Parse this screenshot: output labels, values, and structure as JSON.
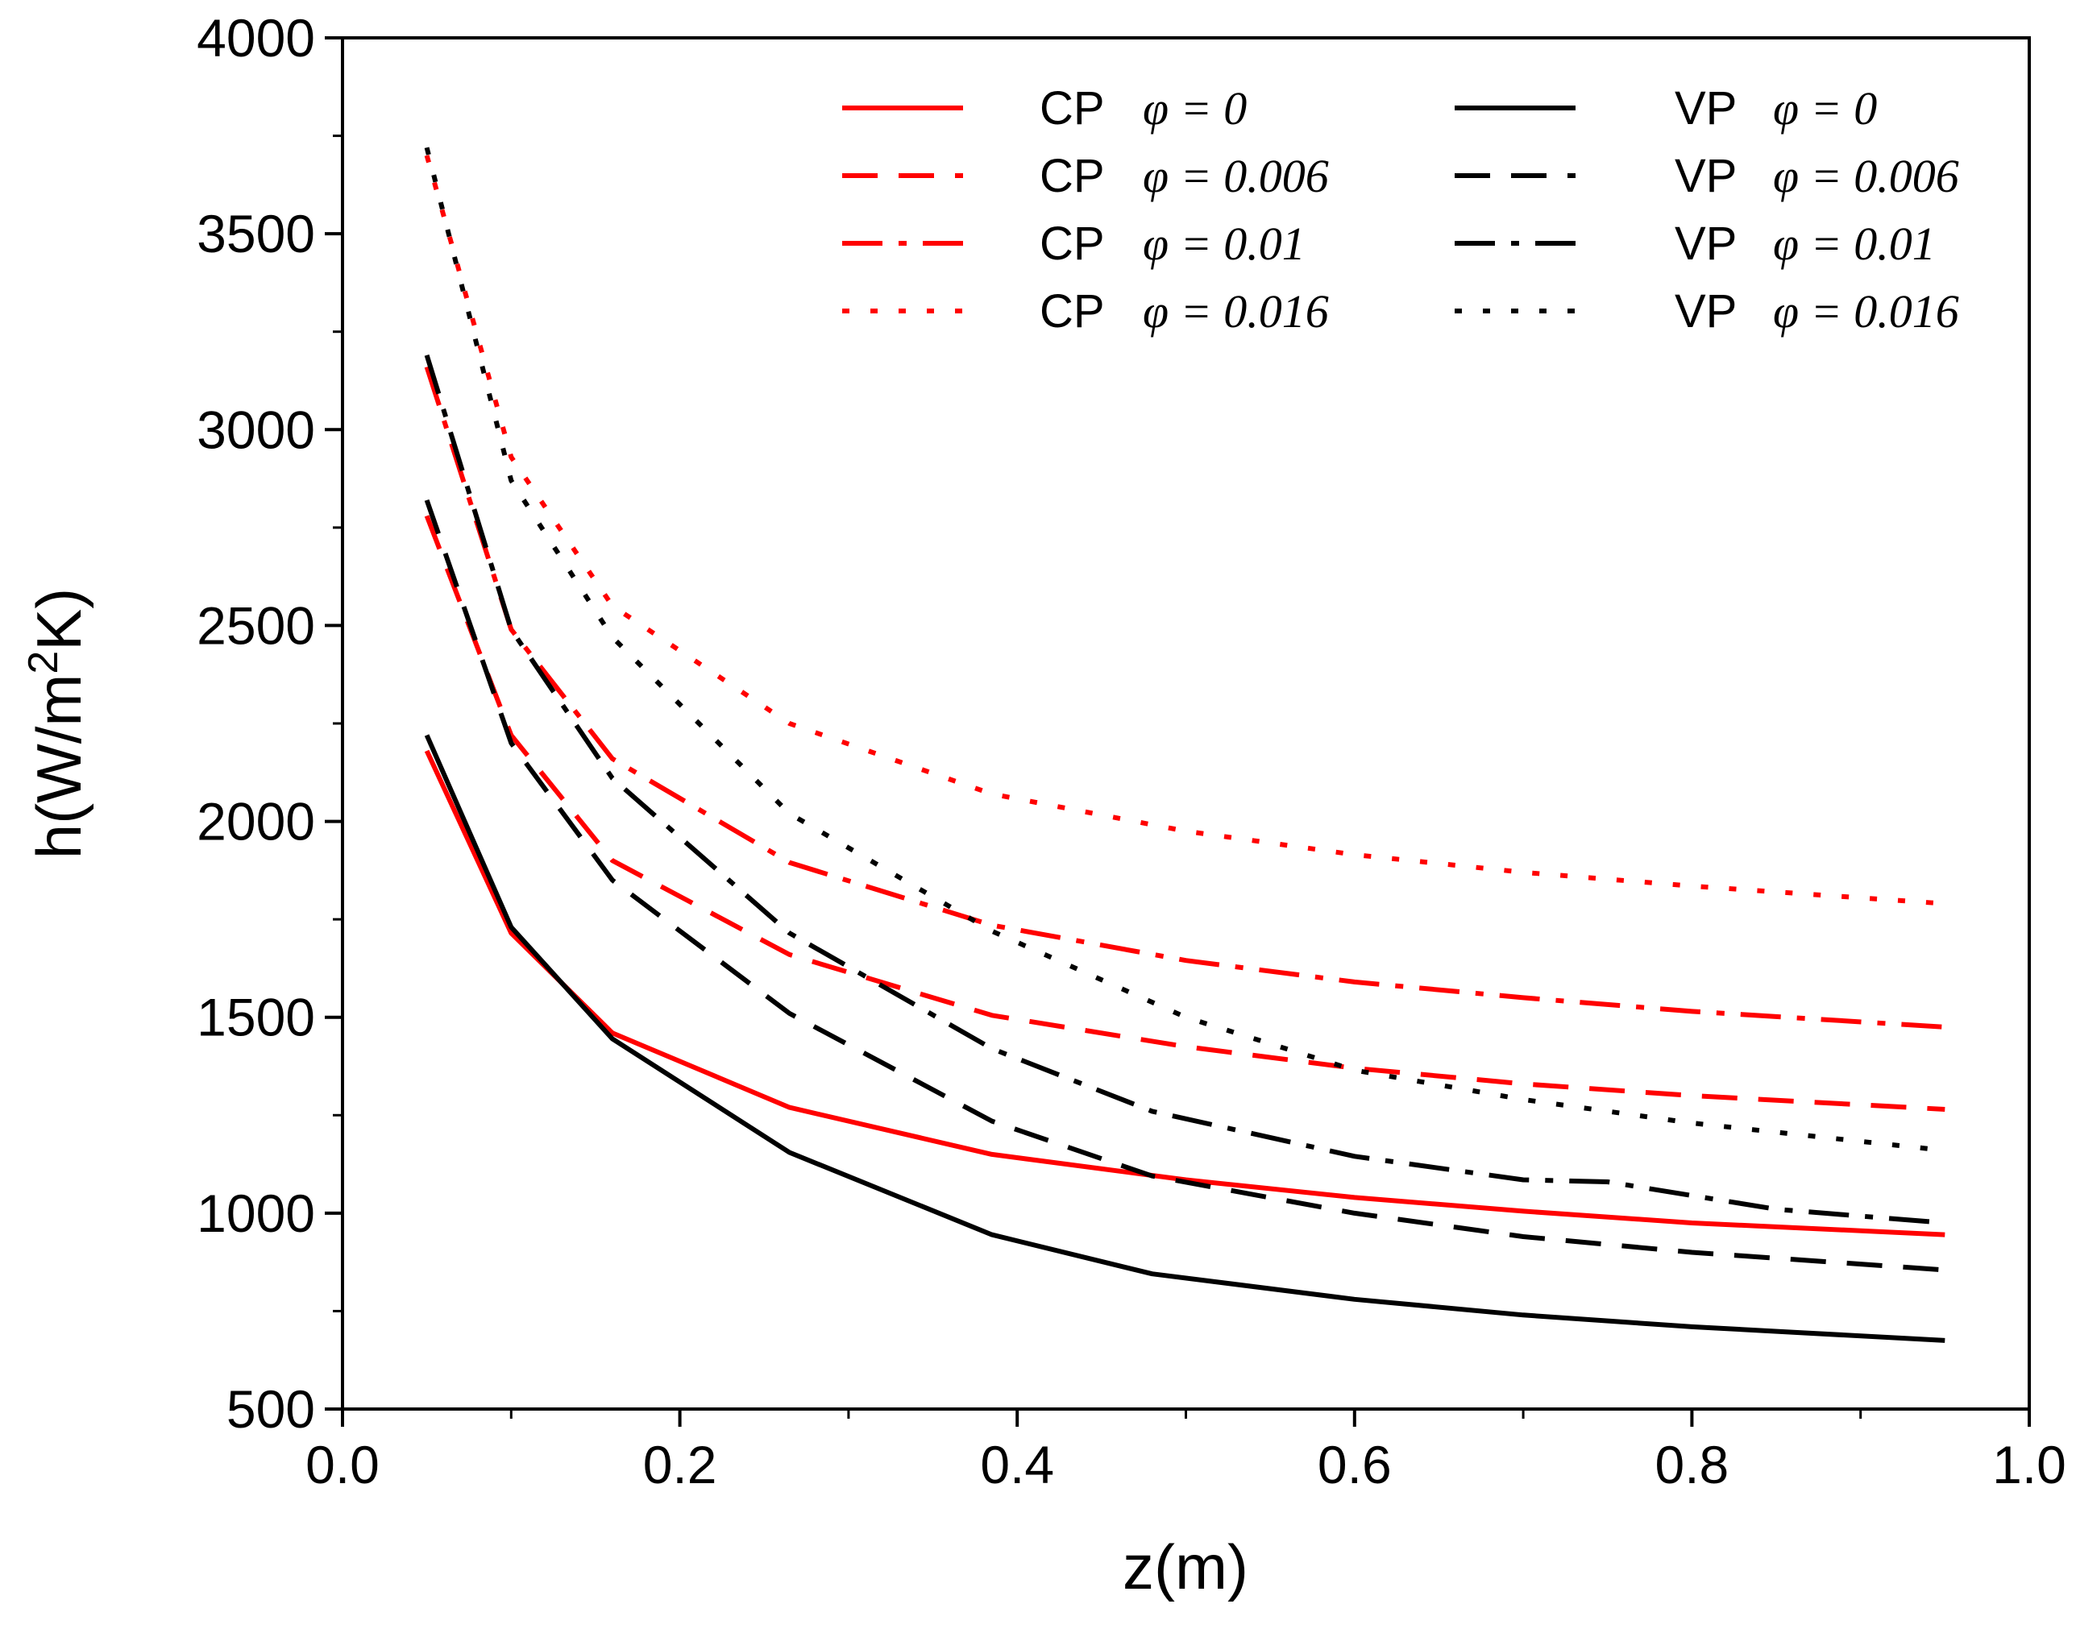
{
  "chart_data": {
    "type": "line",
    "title": "",
    "xlabel": "z(m)",
    "ylabel_parts": {
      "main": "h(W/m",
      "sup": "2",
      "tail": "K)"
    },
    "xlim": [
      0.0,
      1.0
    ],
    "ylim": [
      500,
      4000
    ],
    "x_ticks": [
      "0.0",
      "0.2",
      "0.4",
      "0.6",
      "0.8",
      "1.0"
    ],
    "y_ticks": [
      "500",
      "1000",
      "1500",
      "2000",
      "2500",
      "3000",
      "3500",
      "4000"
    ],
    "legend_position": "top-right",
    "series": [
      {
        "name": "CP φ=0",
        "prefix": "CP",
        "phi_label": "φ = 0",
        "color": "#ff0000",
        "style": "solid",
        "x": [
          0.05,
          0.1,
          0.16,
          0.265,
          0.385,
          0.5,
          0.6,
          0.7,
          0.8,
          0.95
        ],
        "y": [
          2180,
          1715,
          1460,
          1270,
          1150,
          1085,
          1040,
          1005,
          975,
          945
        ]
      },
      {
        "name": "CP φ=0.006",
        "prefix": "CP",
        "phi_label": "φ = 0.006",
        "color": "#ff0000",
        "style": "dash",
        "x": [
          0.05,
          0.1,
          0.16,
          0.265,
          0.385,
          0.5,
          0.6,
          0.7,
          0.8,
          0.95
        ],
        "y": [
          2780,
          2220,
          1900,
          1660,
          1505,
          1425,
          1370,
          1330,
          1300,
          1265
        ]
      },
      {
        "name": "CP φ=0.01",
        "prefix": "CP",
        "phi_label": "φ = 0.01",
        "color": "#ff0000",
        "style": "dashdot",
        "x": [
          0.05,
          0.1,
          0.16,
          0.265,
          0.385,
          0.5,
          0.6,
          0.7,
          0.8,
          0.95
        ],
        "y": [
          3160,
          2490,
          2160,
          1895,
          1735,
          1645,
          1590,
          1550,
          1515,
          1475
        ]
      },
      {
        "name": "CP φ=0.016",
        "prefix": "CP",
        "phi_label": "φ = 0.016",
        "color": "#ff0000",
        "style": "dot",
        "x": [
          0.05,
          0.1,
          0.16,
          0.265,
          0.385,
          0.5,
          0.6,
          0.7,
          0.8,
          0.95
        ],
        "y": [
          3700,
          2930,
          2550,
          2250,
          2070,
          1975,
          1915,
          1870,
          1835,
          1790
        ]
      },
      {
        "name": "VP φ=0",
        "prefix": "VP",
        "phi_label": "φ = 0",
        "color": "#000000",
        "style": "solid",
        "x": [
          0.05,
          0.1,
          0.16,
          0.265,
          0.385,
          0.48,
          0.6,
          0.7,
          0.8,
          0.95
        ],
        "y": [
          2220,
          1730,
          1445,
          1155,
          945,
          845,
          780,
          740,
          710,
          675
        ]
      },
      {
        "name": "VP φ=0.006",
        "prefix": "VP",
        "phi_label": "φ = 0.006",
        "color": "#000000",
        "style": "dash",
        "x": [
          0.05,
          0.1,
          0.16,
          0.265,
          0.385,
          0.48,
          0.6,
          0.7,
          0.8,
          0.95
        ],
        "y": [
          2820,
          2200,
          1850,
          1510,
          1235,
          1095,
          1000,
          940,
          900,
          855
        ]
      },
      {
        "name": "VP φ=0.01",
        "prefix": "VP",
        "phi_label": "φ = 0.01",
        "color": "#000000",
        "style": "dashdot",
        "x": [
          0.05,
          0.1,
          0.16,
          0.265,
          0.385,
          0.48,
          0.6,
          0.7,
          0.75,
          0.85,
          0.95
        ],
        "y": [
          3190,
          2490,
          2110,
          1715,
          1420,
          1260,
          1145,
          1085,
          1080,
          1010,
          975
        ]
      },
      {
        "name": "VP φ=0.016",
        "prefix": "VP",
        "phi_label": "φ = 0.016",
        "color": "#000000",
        "style": "dot",
        "x": [
          0.05,
          0.1,
          0.16,
          0.265,
          0.385,
          0.5,
          0.6,
          0.7,
          0.8,
          0.95
        ],
        "y": [
          3720,
          2870,
          2470,
          2020,
          1720,
          1500,
          1365,
          1290,
          1230,
          1160
        ]
      }
    ]
  }
}
